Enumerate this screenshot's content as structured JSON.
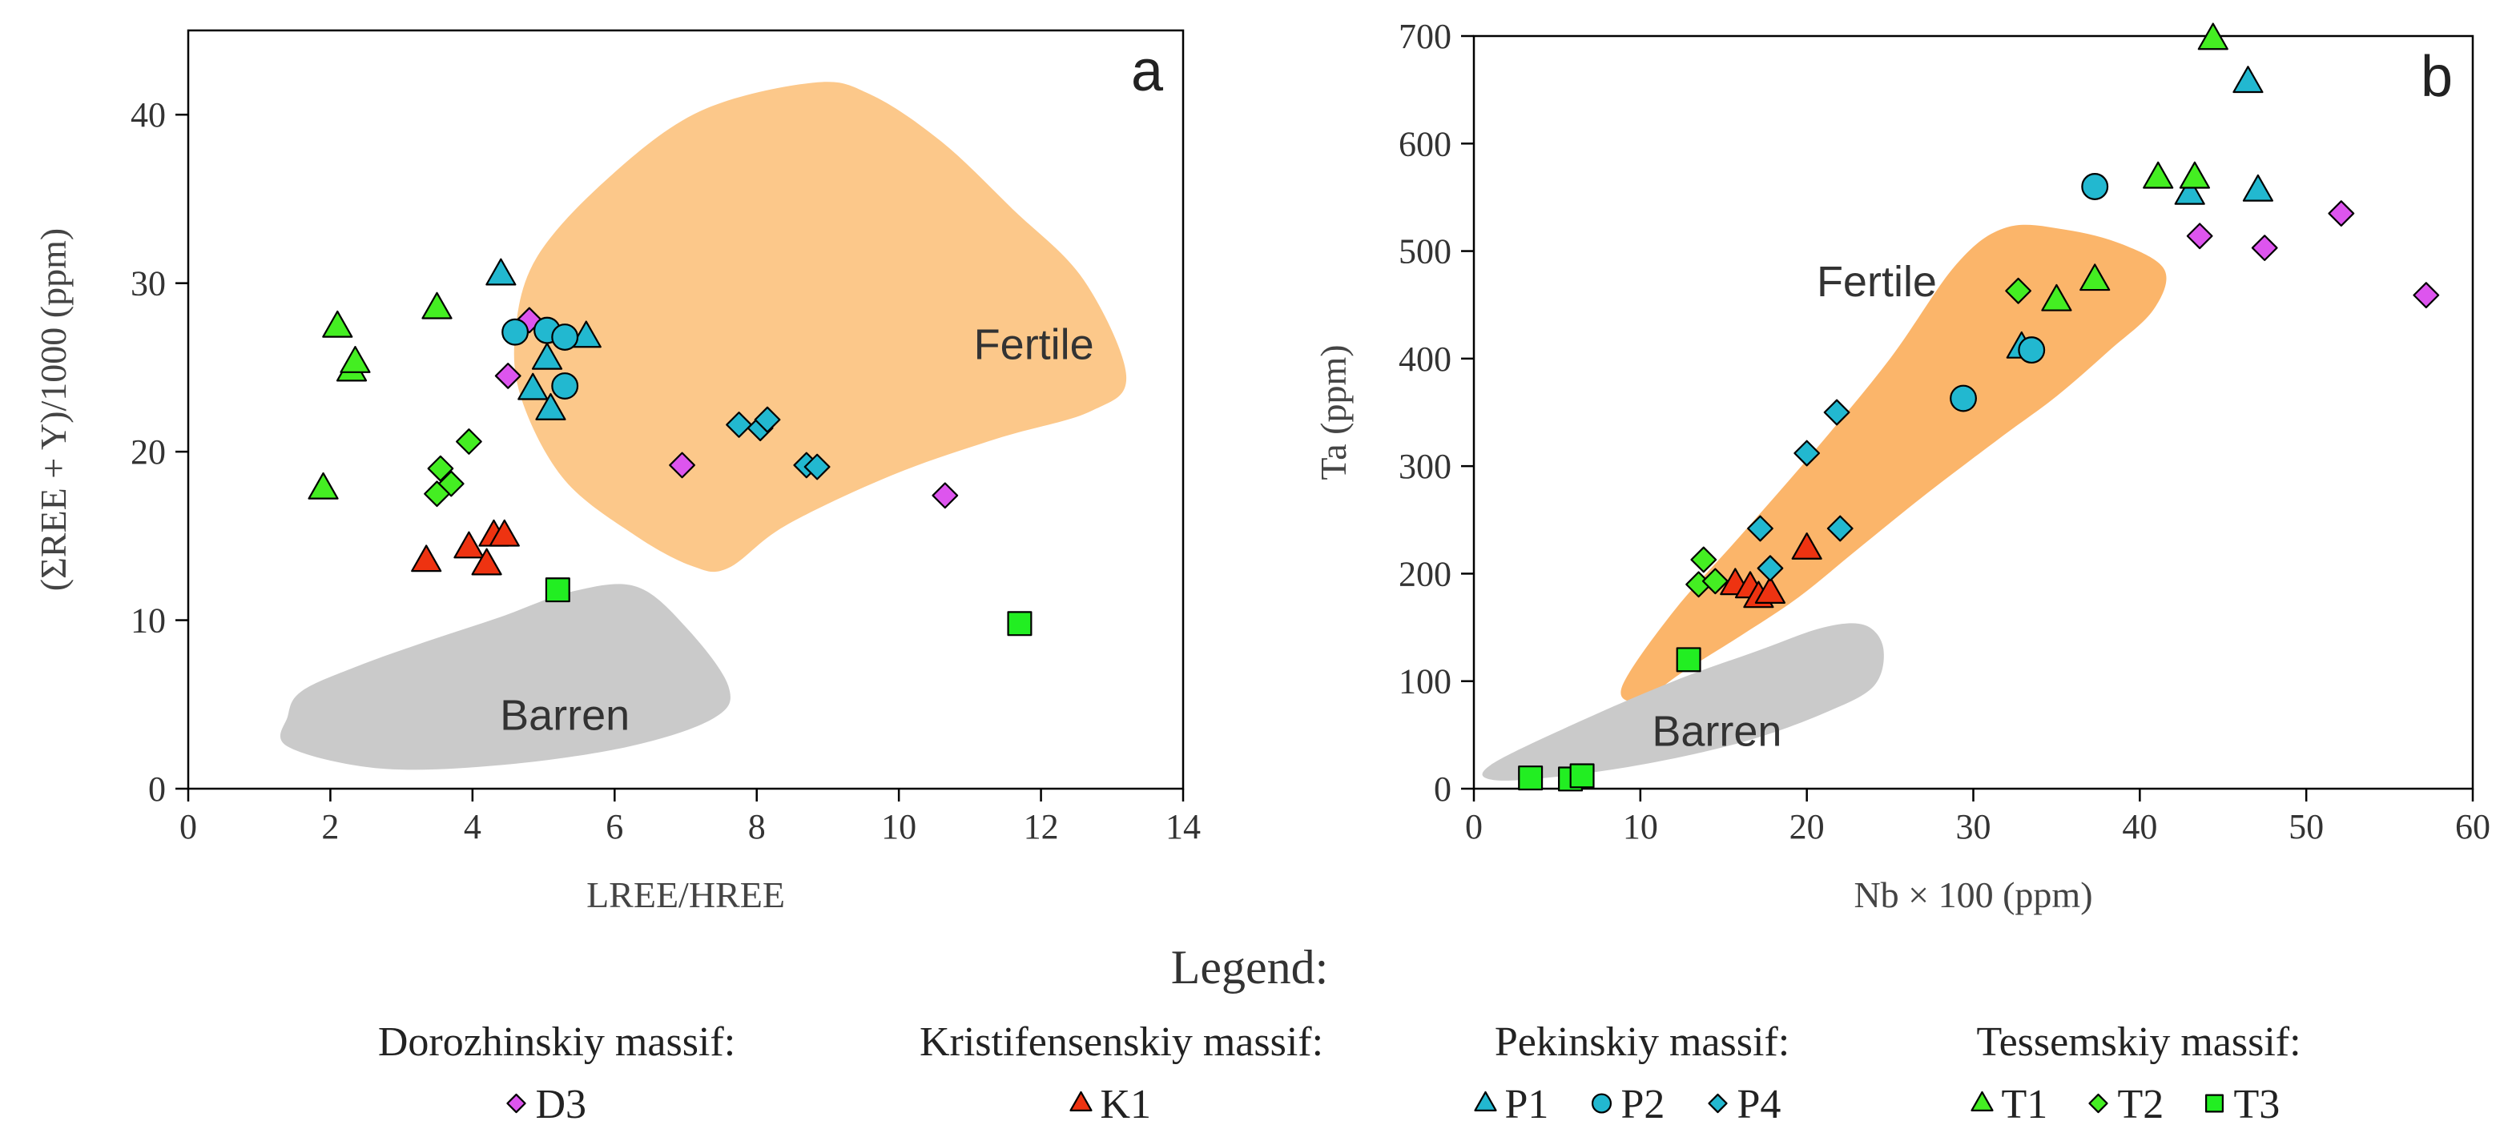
{
  "chart_data": [
    {
      "type": "scatter",
      "panel_label": "a",
      "xlabel": "LREE/HREE",
      "ylabel": "(ΣREE + Y)/1000 (ppm)",
      "xlim": [
        0,
        14
      ],
      "ylim": [
        0,
        45
      ],
      "xticks": [
        0,
        2,
        4,
        6,
        8,
        10,
        12,
        14
      ],
      "yticks": [
        0,
        10,
        20,
        30,
        40
      ],
      "xtick_labels": [
        "0",
        "2",
        "4",
        "6",
        "8",
        "10",
        "12",
        "14"
      ],
      "ytick_labels": [
        "0",
        "10",
        "20",
        "30",
        "40"
      ],
      "fields": [
        {
          "name": "Fertile",
          "label_at": [
            11.9,
            25.5
          ],
          "color": "#fcc88a",
          "outline": [
            [
              4.9,
              31.5
            ],
            [
              5.9,
              36.2
            ],
            [
              7.2,
              40.2
            ],
            [
              8.8,
              41.9
            ],
            [
              9.6,
              41.2
            ],
            [
              10.6,
              38.4
            ],
            [
              11.6,
              34.4
            ],
            [
              12.6,
              30.2
            ],
            [
              13.2,
              24.5
            ],
            [
              12.7,
              22.4
            ],
            [
              11.4,
              20.8
            ],
            [
              9.9,
              18.6
            ],
            [
              8.4,
              15.6
            ],
            [
              7.6,
              13.1
            ],
            [
              7.1,
              13.2
            ],
            [
              6.3,
              15.0
            ],
            [
              5.3,
              18.3
            ],
            [
              4.7,
              23.0
            ],
            [
              4.6,
              27.0
            ]
          ]
        },
        {
          "name": "Barren",
          "label_at": [
            5.3,
            3.5
          ],
          "color": "#cacaca",
          "outline": [
            [
              1.6,
              5.8
            ],
            [
              2.4,
              7.3
            ],
            [
              3.4,
              8.8
            ],
            [
              4.4,
              10.2
            ],
            [
              5.4,
              11.7
            ],
            [
              6.3,
              12.0
            ],
            [
              7.0,
              9.6
            ],
            [
              7.6,
              6.1
            ],
            [
              7.4,
              4.2
            ],
            [
              6.2,
              2.5
            ],
            [
              4.4,
              1.4
            ],
            [
              2.7,
              1.2
            ],
            [
              1.4,
              2.5
            ],
            [
              1.4,
              4.3
            ]
          ]
        }
      ],
      "series": [
        {
          "name": "D3",
          "marker": "diamond",
          "color": "#dd55ee",
          "points": [
            [
              4.8,
              27.8
            ],
            [
              4.5,
              24.5
            ],
            [
              6.95,
              19.2
            ],
            [
              10.65,
              17.4
            ]
          ]
        },
        {
          "name": "K1",
          "marker": "triangle",
          "color": "#ee3311",
          "points": [
            [
              3.35,
              13.5
            ],
            [
              3.95,
              14.3
            ],
            [
              4.3,
              15.0
            ],
            [
              4.45,
              15.0
            ],
            [
              4.2,
              13.3
            ]
          ]
        },
        {
          "name": "P1",
          "marker": "triangle",
          "color": "#22b8d0",
          "points": [
            [
              4.4,
              30.5
            ],
            [
              5.05,
              25.5
            ],
            [
              5.6,
              26.8
            ],
            [
              4.85,
              23.7
            ],
            [
              5.1,
              22.5
            ]
          ]
        },
        {
          "name": "P2",
          "marker": "circle",
          "color": "#22b8d0",
          "points": [
            [
              4.6,
              27.1
            ],
            [
              5.05,
              27.2
            ],
            [
              5.3,
              26.8
            ],
            [
              5.3,
              23.9
            ]
          ]
        },
        {
          "name": "P4",
          "marker": "diamond",
          "color": "#22b8d0",
          "points": [
            [
              7.75,
              21.6
            ],
            [
              8.05,
              21.4
            ],
            [
              8.15,
              21.9
            ],
            [
              8.7,
              19.2
            ],
            [
              8.85,
              19.1
            ]
          ]
        },
        {
          "name": "T1",
          "marker": "triangle",
          "color": "#44ee22",
          "points": [
            [
              2.1,
              27.4
            ],
            [
              2.3,
              24.8
            ],
            [
              2.35,
              25.3
            ],
            [
              3.5,
              28.5
            ],
            [
              1.9,
              17.8
            ]
          ]
        },
        {
          "name": "T2",
          "marker": "diamond",
          "color": "#44ee22",
          "points": [
            [
              3.95,
              20.6
            ],
            [
              3.55,
              19.0
            ],
            [
              3.7,
              18.1
            ],
            [
              3.5,
              17.5
            ]
          ]
        },
        {
          "name": "T3",
          "marker": "square",
          "color": "#22ee22",
          "points": [
            [
              5.2,
              11.8
            ],
            [
              11.7,
              9.8
            ]
          ]
        }
      ]
    },
    {
      "type": "scatter",
      "panel_label": "b",
      "xlabel": "Nb × 100 (ppm)",
      "ylabel": "Ta (ppm)",
      "xlim": [
        0,
        60
      ],
      "ylim": [
        0,
        700
      ],
      "xticks": [
        0,
        10,
        20,
        30,
        40,
        50,
        60
      ],
      "yticks": [
        0,
        100,
        200,
        300,
        400,
        500,
        600,
        700
      ],
      "xtick_labels": [
        "0",
        "10",
        "20",
        "30",
        "40",
        "50",
        "60"
      ],
      "ytick_labels": [
        "0",
        "100",
        "200",
        "300",
        "400",
        "500",
        "600",
        "700"
      ],
      "fields": [
        {
          "name": "Fertile",
          "label_at": [
            24.2,
            458
          ],
          "color": "#fbb56a",
          "outline": [
            [
              8.9,
              95
            ],
            [
              12.0,
              165
            ],
            [
              16.0,
              235
            ],
            [
              20.5,
              315
            ],
            [
              25.0,
              400
            ],
            [
              29.0,
              488
            ],
            [
              32.0,
              522
            ],
            [
              35.5,
              520
            ],
            [
              39.0,
              506
            ],
            [
              41.5,
              482
            ],
            [
              40.8,
              445
            ],
            [
              38.2,
              408
            ],
            [
              35.0,
              365
            ],
            [
              31.5,
              325
            ],
            [
              27.0,
              272
            ],
            [
              23.0,
              222
            ],
            [
              19.5,
              178
            ],
            [
              16.0,
              142
            ],
            [
              12.5,
              108
            ],
            [
              10.0,
              82
            ]
          ]
        },
        {
          "name": "Barren",
          "label_at": [
            14.6,
            40
          ],
          "color": "#cacaca",
          "outline": [
            [
              1.0,
              22
            ],
            [
              6.0,
              60
            ],
            [
              12.0,
              100
            ],
            [
              17.0,
              128
            ],
            [
              21.0,
              150
            ],
            [
              23.5,
              152
            ],
            [
              24.6,
              130
            ],
            [
              24.0,
              95
            ],
            [
              21.0,
              70
            ],
            [
              16.5,
              45
            ],
            [
              11.0,
              25
            ],
            [
              5.5,
              12
            ],
            [
              1.2,
              8
            ]
          ]
        }
      ],
      "series": [
        {
          "name": "D3",
          "marker": "diamond",
          "color": "#dd55ee",
          "points": [
            [
              52.1,
              535
            ],
            [
              43.6,
              514
            ],
            [
              47.5,
              503
            ],
            [
              57.2,
              459
            ]
          ]
        },
        {
          "name": "K1",
          "marker": "triangle",
          "color": "#ee3311",
          "points": [
            [
              20.0,
              223
            ],
            [
              15.7,
              190
            ],
            [
              16.6,
              187
            ],
            [
              17.1,
              178
            ],
            [
              17.8,
              182
            ]
          ]
        },
        {
          "name": "P1",
          "marker": "triangle",
          "color": "#22b8d0",
          "points": [
            [
              46.5,
              657
            ],
            [
              43.0,
              553
            ],
            [
              47.1,
              556
            ],
            [
              32.9,
              410
            ]
          ]
        },
        {
          "name": "P2",
          "marker": "circle",
          "color": "#22b8d0",
          "points": [
            [
              37.3,
              560
            ],
            [
              33.5,
              408
            ],
            [
              29.4,
              363
            ]
          ]
        },
        {
          "name": "P4",
          "marker": "diamond",
          "color": "#22b8d0",
          "points": [
            [
              21.8,
              350
            ],
            [
              20.0,
              312
            ],
            [
              17.2,
              242
            ],
            [
              22.0,
              242
            ],
            [
              17.8,
              205
            ]
          ]
        },
        {
          "name": "T1",
          "marker": "triangle",
          "color": "#44ee22",
          "points": [
            [
              44.4,
              697
            ],
            [
              41.1,
              568
            ],
            [
              43.3,
              568
            ],
            [
              37.3,
              473
            ],
            [
              35.0,
              454
            ]
          ]
        },
        {
          "name": "T2",
          "marker": "diamond",
          "color": "#44ee22",
          "points": [
            [
              32.7,
              463
            ],
            [
              13.8,
              213
            ],
            [
              13.5,
              190
            ],
            [
              14.5,
              193
            ]
          ]
        },
        {
          "name": "T3",
          "marker": "square",
          "color": "#22ee22",
          "points": [
            [
              12.9,
              120
            ],
            [
              3.4,
              10
            ],
            [
              5.8,
              9
            ],
            [
              6.5,
              12
            ]
          ]
        }
      ]
    }
  ],
  "legend": {
    "title": "Legend:",
    "groups": [
      {
        "name": "Dorozhinskiy massif:",
        "entries": [
          {
            "label": "D3",
            "marker": "diamond",
            "color": "#dd55ee"
          }
        ]
      },
      {
        "name": "Kristifensenskiy massif:",
        "entries": [
          {
            "label": "K1",
            "marker": "triangle",
            "color": "#ee3311"
          }
        ]
      },
      {
        "name": "Pekinskiy massif:",
        "entries": [
          {
            "label": "P1",
            "marker": "triangle",
            "color": "#22b8d0"
          },
          {
            "label": "P2",
            "marker": "circle",
            "color": "#22b8d0"
          },
          {
            "label": "P4",
            "marker": "diamond",
            "color": "#22b8d0"
          }
        ]
      },
      {
        "name": "Tessemskiy massif:",
        "entries": [
          {
            "label": "T1",
            "marker": "triangle",
            "color": "#44ee22"
          },
          {
            "label": "T2",
            "marker": "diamond",
            "color": "#44ee22"
          },
          {
            "label": "T3",
            "marker": "square",
            "color": "#22ee22"
          }
        ]
      }
    ]
  }
}
